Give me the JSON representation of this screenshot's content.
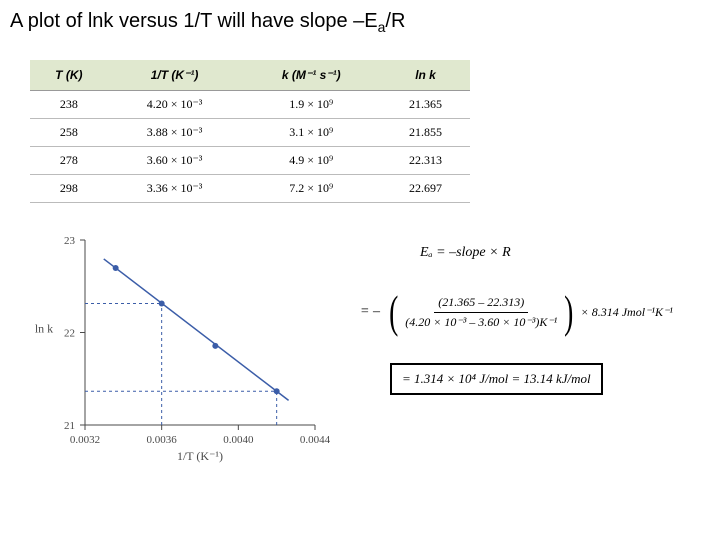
{
  "title": {
    "pre": "A plot of lnk versus 1/T will have slope –E",
    "sub": "a",
    "post": "/R"
  },
  "table": {
    "headers": {
      "c0": "T (K)",
      "c1": "1/T (K⁻¹)",
      "c2": "k (M⁻¹ s⁻¹)",
      "c3": "ln k"
    },
    "rows": [
      {
        "c0": "238",
        "c1": "4.20 × 10⁻³",
        "c2": "1.9 × 10⁹",
        "c3": "21.365"
      },
      {
        "c0": "258",
        "c1": "3.88 × 10⁻³",
        "c2": "3.1 × 10⁹",
        "c3": "21.855"
      },
      {
        "c0": "278",
        "c1": "3.60 × 10⁻³",
        "c2": "4.9 × 10⁹",
        "c3": "22.313"
      },
      {
        "c0": "298",
        "c1": "3.36 × 10⁻³",
        "c2": "7.2 × 10⁹",
        "c3": "22.697"
      }
    ]
  },
  "chart": {
    "type": "scatter-line",
    "xlabel": "1/T (K⁻¹)",
    "ylabel": "ln k",
    "xlim": [
      0.0032,
      0.0044
    ],
    "ylim": [
      21,
      23
    ],
    "xticks": [
      0.0032,
      0.0036,
      0.004,
      0.0044
    ],
    "yticks": [
      21,
      22,
      23
    ],
    "line_color": "#3b5da8",
    "marker_color": "#3b5da8",
    "background_color": "#ffffff",
    "axis_color": "#4a4a4a",
    "dashed_color": "#3b5da8",
    "marker_size": 3,
    "line_width": 1.5,
    "points": [
      {
        "x": 0.00336,
        "y": 22.697
      },
      {
        "x": 0.0036,
        "y": 22.313
      },
      {
        "x": 0.00388,
        "y": 21.855
      },
      {
        "x": 0.0042,
        "y": 21.365
      }
    ],
    "dashed_guides": {
      "h1_y": 22.313,
      "h1_x0": 0.0032,
      "h1_x1": 0.0036,
      "v1_x": 0.0036,
      "v1_y0": 21,
      "v1_y1": 22.313,
      "h2_y": 21.365,
      "h2_x0": 0.0032,
      "h2_x1": 0.0042,
      "v2_x": 0.0042,
      "v2_y0": 21,
      "v2_y1": 21.365
    }
  },
  "equations": {
    "eq1": "Eₐ = –slope × R",
    "eq2_lead": "= –",
    "eq2_num": "(21.365 – 22.313)",
    "eq2_den": "(4.20 × 10⁻³ – 3.60 × 10⁻³)K⁻¹",
    "eq2_tail": "× 8.314 Jmol⁻¹K⁻¹",
    "eq3": "= 1.314 × 10⁴ J/mol = 13.14 kJ/mol"
  }
}
